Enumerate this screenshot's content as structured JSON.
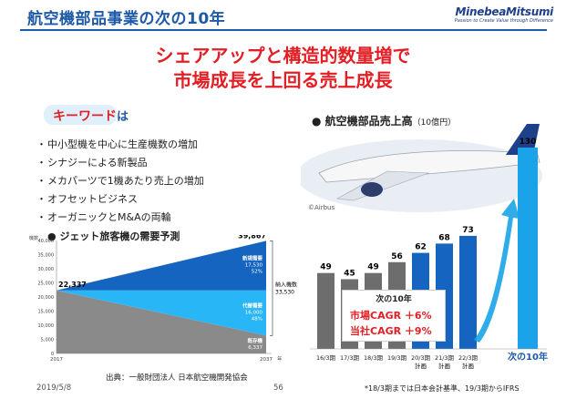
{
  "header": {
    "title": "航空機部品事業の次の10年",
    "logo_name": "MinebeaMitsumi",
    "logo_tagline": "Passion to Create Value through Difference"
  },
  "headline": {
    "line1": "シェアアップと構造的数量増で",
    "line2": "市場成長を上回る売上成長"
  },
  "keywords": {
    "title": "キーワード",
    "title_suffix": "は",
    "items": [
      "中小型機を中心に生産機数の増加",
      "シナジーによる新製品",
      "メカパーツで1機あたり売上の増加",
      "オフセットビジネス",
      "オーガニックとM&Aの両輪"
    ]
  },
  "demand": {
    "title": "ジェット旅客機の需要予測",
    "footer_source": "出典：一般財団法人 日本航空機開発協会"
  },
  "sales": {
    "title": "航空機部品売上高",
    "unit": "（10億円）",
    "photo_credit": "©Airbus",
    "cagr_header": "次の10年",
    "cagr_market": "市場CAGR ＋6%",
    "cagr_company": "当社CAGR ＋9%"
  },
  "footer": {
    "date": "2019/5/8",
    "page": "56",
    "note": "*18/3期までは日本会計基準、19/3期からIFRS"
  },
  "colors": {
    "brand_blue": "#1e5aa8",
    "accent_red": "#e31e24",
    "bar_gray": "#6d6d6d",
    "bar_blue": "#1565c0",
    "future_bar": "#1aa3e8",
    "demand_dark": "#1565c0",
    "demand_light": "#29b6f6",
    "demand_gray": "#8a8a8a"
  },
  "chart_data": [
    {
      "type": "area",
      "title": "ジェット旅客機の需要予測",
      "ylabel": "機数",
      "xlabel": "年",
      "x": [
        2017,
        2037
      ],
      "ylim": [
        0,
        40000
      ],
      "yticks": [
        0,
        5000,
        10000,
        15000,
        20000,
        25000,
        30000,
        35000,
        40000
      ],
      "ytick_labels": [
        "0",
        "5,000",
        "10,000",
        "15,000",
        "20,000",
        "25,000",
        "30,000",
        "35,000",
        "40,000"
      ],
      "xtick_labels": [
        "2017",
        "2037"
      ],
      "start_total": 22337,
      "start_total_label": "22,337",
      "end_total": 39867,
      "end_total_label": "39,867",
      "series": [
        {
          "name": "既存機",
          "end_value": 6337,
          "end_label": "6,337"
        },
        {
          "name": "代替需要",
          "end_value": 16000,
          "end_label": "16,000",
          "end_share": "48%"
        },
        {
          "name": "新規需要",
          "end_value": 17530,
          "end_label": "17,530",
          "end_share": "52%"
        }
      ],
      "delivery_total_label": "納入機数",
      "delivery_total": 33530,
      "delivery_total_value_label": "33,530",
      "grid": false
    },
    {
      "type": "bar",
      "title": "航空機部品売上高",
      "unit": "（10億円）",
      "categories": [
        "16/3期",
        "17/3期",
        "18/3期",
        "19/3期",
        "20/3期",
        "21/3期",
        "22/3期",
        "次の10年"
      ],
      "category_sublabels": [
        "",
        "",
        "",
        "",
        "計画",
        "計画",
        "計画",
        ""
      ],
      "values": [
        49,
        45,
        49,
        56,
        62,
        68,
        73,
        130
      ],
      "bar_colors": [
        "#6d6d6d",
        "#6d6d6d",
        "#6d6d6d",
        "#6d6d6d",
        "#1565c0",
        "#1565c0",
        "#1565c0",
        "#1aa3e8"
      ],
      "ylim": [
        0,
        135
      ],
      "grid": false,
      "legend": "none"
    }
  ]
}
